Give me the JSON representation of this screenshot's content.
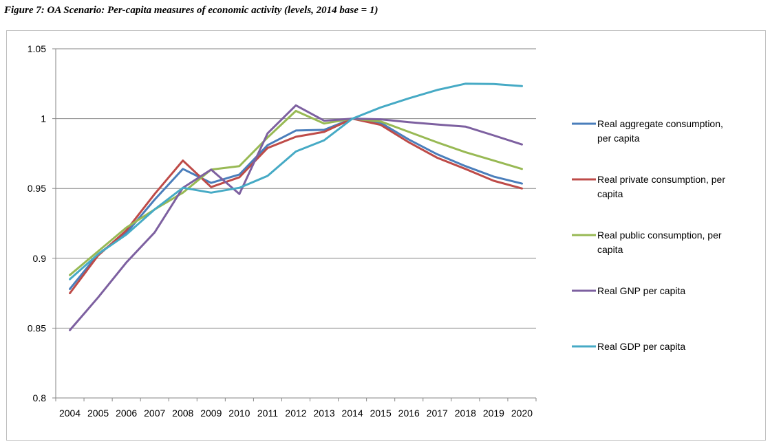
{
  "chart_data": {
    "type": "line",
    "title": "Figure 7: OA Scenario: Per-capita measures of economic activity (levels, 2014 base = 1)",
    "xlabel": "",
    "ylabel": "",
    "ylim": [
      0.8,
      1.05
    ],
    "yticks": [
      0.8,
      0.85,
      0.9,
      0.95,
      1,
      1.05
    ],
    "ytick_labels": [
      "0.8",
      "0.85",
      "0.9",
      "0.95",
      "1",
      "1.05"
    ],
    "grid": true,
    "legend_position": "right",
    "categories": [
      "2004",
      "2005",
      "2006",
      "2007",
      "2008",
      "2009",
      "2010",
      "2011",
      "2012",
      "2013",
      "2014",
      "2015",
      "2016",
      "2017",
      "2018",
      "2019",
      "2020"
    ],
    "series": [
      {
        "name": "Real aggregate consumption, per capita",
        "legend_lines": [
          "Real aggregate consumption,",
          "per capita"
        ],
        "color": "#4a7ebb",
        "values": [
          0.878,
          0.903,
          0.918,
          0.942,
          0.964,
          0.954,
          0.96,
          0.981,
          0.9915,
          0.992,
          1.0,
          0.997,
          0.985,
          0.9745,
          0.966,
          0.9585,
          0.9535
        ]
      },
      {
        "name": "Real private consumption, per capita",
        "legend_lines": [
          "Real private consumption, per",
          "capita"
        ],
        "color": "#be4b48",
        "values": [
          0.875,
          0.902,
          0.92,
          0.946,
          0.97,
          0.951,
          0.958,
          0.979,
          0.987,
          0.9905,
          1.0,
          0.9955,
          0.983,
          0.972,
          0.964,
          0.9555,
          0.95
        ]
      },
      {
        "name": "Real public consumption, per capita",
        "legend_lines": [
          "Real public consumption, per",
          "capita"
        ],
        "color": "#98b954",
        "values": [
          0.888,
          0.905,
          0.922,
          0.935,
          0.947,
          0.9635,
          0.966,
          0.9865,
          1.0055,
          0.9965,
          1.0,
          0.998,
          0.9905,
          0.983,
          0.976,
          0.97,
          0.964
        ]
      },
      {
        "name": "Real GNP per capita",
        "legend_lines": [
          "Real GNP per capita"
        ],
        "color": "#7d60a0",
        "values": [
          0.8485,
          0.872,
          0.897,
          0.9185,
          0.9505,
          0.9635,
          0.946,
          0.9895,
          1.0095,
          0.9985,
          1.0,
          0.9995,
          0.9975,
          0.9958,
          0.9943,
          0.988,
          0.9815
        ]
      },
      {
        "name": "Real GDP per capita",
        "legend_lines": [
          "Real GDP per capita"
        ],
        "color": "#46aac5",
        "values": [
          0.885,
          0.903,
          0.917,
          0.935,
          0.9505,
          0.947,
          0.9505,
          0.959,
          0.9765,
          0.9845,
          1.0,
          1.008,
          1.0145,
          1.0205,
          1.025,
          1.0248,
          1.0233
        ]
      }
    ]
  }
}
